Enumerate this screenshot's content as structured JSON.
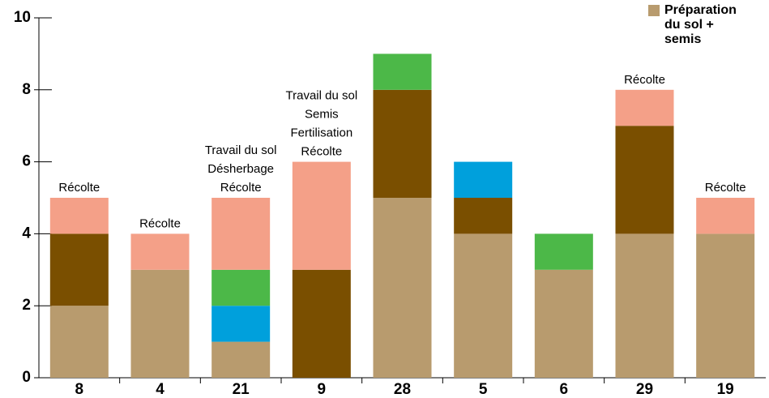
{
  "chart_data": {
    "type": "stacked-bar",
    "categories": [
      "8",
      "4",
      "21",
      "9",
      "28",
      "5",
      "6",
      "29",
      "19"
    ],
    "series": [
      {
        "name": "Préparation du sol + semis",
        "color": "#b89b6e",
        "values": [
          2,
          3,
          1,
          0,
          5,
          4,
          3,
          4,
          4
        ]
      },
      {
        "color": "#7a4f00",
        "values": [
          2,
          0,
          0,
          3,
          3,
          1,
          0,
          3,
          0
        ]
      },
      {
        "color": "#00a0dc",
        "values": [
          0,
          0,
          1,
          0,
          0,
          1,
          0,
          0,
          0
        ]
      },
      {
        "color": "#4cb848",
        "values": [
          0,
          0,
          1,
          0,
          1,
          0,
          1,
          0,
          0
        ]
      },
      {
        "color": "#f4a088",
        "values": [
          1,
          1,
          2,
          3,
          0,
          0,
          0,
          1,
          1
        ]
      }
    ],
    "annotations": [
      [
        "Récolte"
      ],
      [
        "Récolte"
      ],
      [
        "Travail du sol",
        "Désherbage",
        "Récolte"
      ],
      [
        "Travail du sol",
        "Semis",
        "Fertilisation",
        "Récolte"
      ],
      null,
      null,
      null,
      [
        "Récolte"
      ],
      [
        "Récolte"
      ]
    ],
    "ylim": [
      0,
      10
    ],
    "yticks": [
      0,
      2,
      4,
      6,
      8,
      10
    ],
    "legend": "top-right"
  }
}
